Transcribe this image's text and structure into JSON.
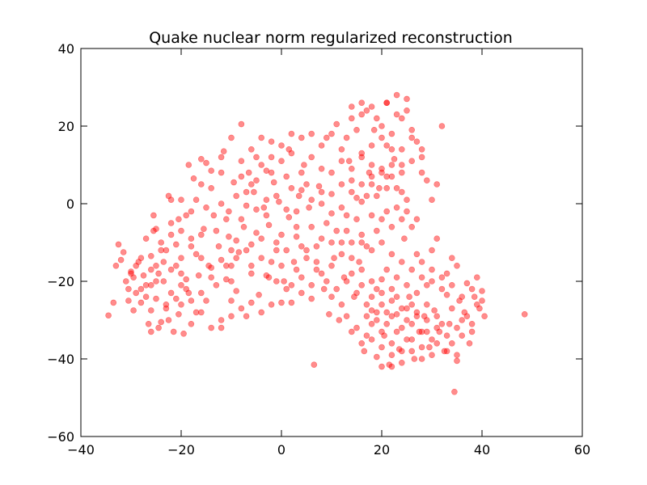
{
  "chart_data": {
    "type": "scatter",
    "title": "Quake nuclear norm regularized reconstruction",
    "xlabel": "",
    "ylabel": "",
    "xlim": [
      -40,
      60
    ],
    "ylim": [
      -60,
      40
    ],
    "x_ticks": [
      -40,
      -20,
      0,
      20,
      40,
      60
    ],
    "y_ticks": [
      -60,
      -40,
      -20,
      0,
      20,
      40
    ],
    "x_tick_labels": [
      "−40",
      "−20",
      "0",
      "20",
      "40",
      "60"
    ],
    "y_tick_labels": [
      "−60",
      "−40",
      "−20",
      "0",
      "20",
      "40"
    ],
    "grid": false,
    "legend": "none",
    "marker_color": "#ff0000",
    "marker_alpha": 0.45,
    "points": [
      [
        -34.5,
        -28.8
      ],
      [
        -33.5,
        -25.5
      ],
      [
        -33,
        -16
      ],
      [
        -32.5,
        -10.5
      ],
      [
        -32,
        -14.5
      ],
      [
        -31.5,
        -12.5
      ],
      [
        -31,
        -20
      ],
      [
        -30.5,
        -25
      ],
      [
        -30.5,
        -22
      ],
      [
        -30,
        -17.5
      ],
      [
        -29.5,
        -27.5
      ],
      [
        -29.5,
        -19
      ],
      [
        -29,
        -16
      ],
      [
        -28.5,
        -15
      ],
      [
        -28,
        -25.5
      ],
      [
        -27.5,
        -18.5
      ],
      [
        -27,
        -21
      ],
      [
        -26.5,
        -31
      ],
      [
        -26,
        -27.5
      ],
      [
        -26,
        -13.5
      ],
      [
        -25.5,
        -3
      ],
      [
        -25.5,
        -7
      ],
      [
        -25,
        -6.5
      ],
      [
        -25,
        -24.5
      ],
      [
        -24.5,
        -18
      ],
      [
        -24.5,
        -32
      ],
      [
        -24,
        -10
      ],
      [
        -23.5,
        -15
      ],
      [
        -23.5,
        -20
      ],
      [
        -23,
        -27
      ],
      [
        -22.5,
        -30
      ],
      [
        -22.5,
        2
      ],
      [
        -22,
        -23
      ],
      [
        -22,
        1
      ],
      [
        -21.5,
        -33
      ],
      [
        -21,
        -10.5
      ],
      [
        -21,
        -16
      ],
      [
        -20.5,
        -4
      ],
      [
        -20.5,
        -28.5
      ],
      [
        -20,
        -21
      ],
      [
        -20,
        -14
      ],
      [
        -19.5,
        -33.5
      ],
      [
        -19,
        -19.5
      ],
      [
        -19,
        -3
      ],
      [
        -18.5,
        10
      ],
      [
        -18.5,
        -23
      ],
      [
        -18,
        -11
      ],
      [
        -17.5,
        6.5
      ],
      [
        -17,
        1
      ],
      [
        -17,
        -28
      ],
      [
        -16.5,
        -18.5
      ],
      [
        -16,
        11.5
      ],
      [
        -15.5,
        -6.5
      ],
      [
        -15,
        10.5
      ],
      [
        -15,
        -25
      ],
      [
        -14.5,
        -16
      ],
      [
        -14,
        8.5
      ],
      [
        -13.5,
        -3
      ],
      [
        -13,
        -21
      ],
      [
        -12.5,
        -11
      ],
      [
        -12,
        -32
      ],
      [
        -11.5,
        13.5
      ],
      [
        -11,
        -19.5
      ],
      [
        -10.5,
        -8.5
      ],
      [
        -10.5,
        -2
      ],
      [
        -10,
        -16
      ],
      [
        -9.5,
        5.5
      ],
      [
        -9,
        -22.5
      ],
      [
        -9,
        2
      ],
      [
        -8.5,
        -12.5
      ],
      [
        -8,
        20.5
      ],
      [
        -7.5,
        -6
      ],
      [
        -7,
        -29
      ],
      [
        -7,
        -0.5
      ],
      [
        -6.5,
        8
      ],
      [
        -6,
        -18
      ],
      [
        -6,
        -10.5
      ],
      [
        -5.5,
        3
      ],
      [
        -5,
        -7.5
      ],
      [
        -5,
        12
      ],
      [
        -4.5,
        -23.5
      ],
      [
        -4,
        -14
      ],
      [
        -3.5,
        -1
      ],
      [
        -3,
        8.5
      ],
      [
        -2.5,
        -19
      ],
      [
        -2.5,
        -5.5
      ],
      [
        -2,
        16
      ],
      [
        -1.5,
        5.5
      ],
      [
        -1,
        -12
      ],
      [
        -0.5,
        0.5
      ],
      [
        0,
        -25.5
      ],
      [
        0,
        -8
      ],
      [
        0.5,
        -20
      ],
      [
        1,
        7
      ],
      [
        1.5,
        14
      ],
      [
        1.5,
        -3.5
      ],
      [
        2,
        -25.5
      ],
      [
        2.5,
        -15
      ],
      [
        3,
        -8.5
      ],
      [
        3.5,
        2
      ],
      [
        4,
        -19
      ],
      [
        4.5,
        10
      ],
      [
        5,
        -12
      ],
      [
        5.5,
        -1
      ],
      [
        6,
        -24.5
      ],
      [
        6.5,
        -41.5
      ],
      [
        7,
        -17
      ],
      [
        7.5,
        4.5
      ],
      [
        8,
        -9
      ],
      [
        8.5,
        -22
      ],
      [
        9,
        17
      ],
      [
        9.5,
        -28.5
      ],
      [
        10,
        -2.5
      ],
      [
        10.5,
        -14
      ],
      [
        11,
        20.5
      ],
      [
        11.5,
        -30
      ],
      [
        12,
        5
      ],
      [
        12.5,
        -19
      ],
      [
        13,
        -7
      ],
      [
        13.5,
        11
      ],
      [
        14,
        -33
      ],
      [
        14.5,
        -24
      ],
      [
        15,
        1.5
      ],
      [
        15.5,
        -15
      ],
      [
        16,
        26
      ],
      [
        16.5,
        -38
      ],
      [
        17,
        -11
      ],
      [
        17.5,
        8
      ],
      [
        18,
        -27.5
      ],
      [
        18.5,
        19
      ],
      [
        19,
        -39.5
      ],
      [
        19.5,
        4
      ],
      [
        20,
        -19.5
      ],
      [
        20.5,
        -34
      ],
      [
        21,
        -2
      ],
      [
        21,
        26
      ],
      [
        21.5,
        -41.5
      ],
      [
        22,
        -22
      ],
      [
        22.5,
        11.5
      ],
      [
        23,
        -28.5
      ],
      [
        23.5,
        -37.5
      ],
      [
        24,
        22
      ],
      [
        24.5,
        -9
      ],
      [
        25,
        -30
      ],
      [
        25.5,
        -24
      ],
      [
        26,
        17
      ],
      [
        26.5,
        -40
      ],
      [
        27,
        -13
      ],
      [
        27.5,
        -33
      ],
      [
        28,
        8
      ],
      [
        28.5,
        -29
      ],
      [
        29,
        -21
      ],
      [
        29.5,
        -37
      ],
      [
        30,
        -12
      ],
      [
        30.5,
        -27.5
      ],
      [
        31,
        5
      ],
      [
        31.5,
        -33
      ],
      [
        32,
        20
      ],
      [
        32.5,
        -38
      ],
      [
        33,
        -23.5
      ],
      [
        33.5,
        -31
      ],
      [
        34,
        -14
      ],
      [
        34.5,
        -48.5
      ],
      [
        35,
        -40.5
      ],
      [
        35.5,
        -25
      ],
      [
        36,
        -34
      ],
      [
        36.5,
        -28
      ],
      [
        37,
        -20.5
      ],
      [
        37.5,
        -36
      ],
      [
        38,
        -31
      ],
      [
        38.5,
        -24
      ],
      [
        39,
        -19
      ],
      [
        39.5,
        -27
      ],
      [
        40,
        -22.5
      ],
      [
        40.5,
        -29
      ],
      [
        48.5,
        -28.5
      ],
      [
        -26,
        -33
      ],
      [
        -24,
        -30.5
      ],
      [
        -23,
        -26
      ],
      [
        -21,
        -24.5
      ],
      [
        -19,
        -22
      ],
      [
        -16,
        -23
      ],
      [
        -14,
        -16.5
      ],
      [
        -12,
        -14.5
      ],
      [
        -10,
        -12
      ],
      [
        -11,
        -4
      ],
      [
        -9,
        -9.5
      ],
      [
        -7,
        -12
      ],
      [
        -5,
        -1.5
      ],
      [
        -3,
        -3
      ],
      [
        -1,
        2
      ],
      [
        1,
        -1.5
      ],
      [
        3,
        -2
      ],
      [
        4,
        3.5
      ],
      [
        6,
        1
      ],
      [
        8,
        0
      ],
      [
        10,
        2.5
      ],
      [
        12,
        -1
      ],
      [
        14,
        3
      ],
      [
        16,
        0.5
      ],
      [
        18,
        -3
      ],
      [
        19,
        2
      ],
      [
        21,
        4
      ],
      [
        23,
        -1
      ],
      [
        24,
        3
      ],
      [
        25,
        1
      ],
      [
        -12,
        8
      ],
      [
        -14,
        4
      ],
      [
        -16,
        5
      ],
      [
        -18,
        -2
      ],
      [
        -20,
        1
      ],
      [
        -22,
        -5
      ],
      [
        -8,
        11
      ],
      [
        -6,
        14
      ],
      [
        -4,
        10
      ],
      [
        -2,
        12
      ],
      [
        0,
        11
      ],
      [
        2,
        13
      ],
      [
        4,
        8
      ],
      [
        6,
        12
      ],
      [
        8,
        9
      ],
      [
        10,
        8
      ],
      [
        12,
        11
      ],
      [
        14,
        9
      ],
      [
        16,
        12
      ],
      [
        18,
        10
      ],
      [
        20,
        9
      ],
      [
        22,
        7
      ],
      [
        -10,
        -25
      ],
      [
        -8,
        -27
      ],
      [
        -6,
        -25.5
      ],
      [
        -4,
        -28
      ],
      [
        -2,
        -26
      ],
      [
        2,
        -21
      ],
      [
        4,
        -23
      ],
      [
        6,
        -21
      ],
      [
        8,
        -18
      ],
      [
        10,
        -16
      ],
      [
        12,
        -13
      ],
      [
        14,
        -10
      ],
      [
        16,
        -8
      ],
      [
        18,
        -12
      ],
      [
        20,
        -10
      ],
      [
        22,
        -13
      ],
      [
        24,
        -15
      ],
      [
        26,
        -17
      ],
      [
        28,
        -19
      ],
      [
        30,
        -20
      ],
      [
        32,
        -22
      ],
      [
        34,
        -27
      ],
      [
        36,
        -30
      ],
      [
        38,
        -33
      ],
      [
        14,
        -18
      ],
      [
        16,
        -21
      ],
      [
        18,
        -24
      ],
      [
        20,
        -26
      ],
      [
        22,
        -29
      ],
      [
        24,
        -32
      ],
      [
        26,
        -35
      ],
      [
        28,
        -37
      ],
      [
        30,
        -39
      ],
      [
        18,
        -31
      ],
      [
        20,
        -33
      ],
      [
        22,
        -36
      ],
      [
        24,
        -38
      ],
      [
        26,
        -31
      ],
      [
        28,
        -33
      ],
      [
        30,
        -35
      ],
      [
        32,
        -31
      ],
      [
        34,
        -36
      ],
      [
        12,
        -26
      ],
      [
        10,
        -24
      ],
      [
        13,
        -29
      ],
      [
        15,
        -32
      ],
      [
        17,
        -29
      ],
      [
        19,
        -22
      ],
      [
        21,
        -17
      ],
      [
        23,
        -19
      ],
      [
        25,
        -21
      ],
      [
        27,
        -23
      ],
      [
        29,
        -26
      ],
      [
        31,
        -29
      ],
      [
        33,
        -18
      ],
      [
        35,
        -16
      ],
      [
        -28,
        -22
      ],
      [
        -27,
        -9
      ],
      [
        -26,
        -17
      ],
      [
        -25,
        -20
      ],
      [
        -23,
        -12
      ],
      [
        -22,
        -17
      ],
      [
        -20,
        -7
      ],
      [
        -18,
        -25
      ],
      [
        -17,
        -13
      ],
      [
        -16,
        -8
      ],
      [
        -15,
        -1
      ],
      [
        -13,
        -7
      ],
      [
        -12,
        0
      ],
      [
        -11,
        -16
      ],
      [
        -10,
        -20
      ],
      [
        -9,
        -14
      ],
      [
        -8,
        -4
      ],
      [
        -7,
        3
      ],
      [
        -6,
        -16
      ],
      [
        -5,
        6
      ],
      [
        -4,
        -9
      ],
      [
        -3,
        1
      ],
      [
        -2,
        -15
      ],
      [
        -1,
        -10
      ],
      [
        0,
        -16
      ],
      [
        1,
        -12
      ],
      [
        2,
        4
      ],
      [
        3,
        -6
      ],
      [
        4,
        -11
      ],
      [
        5,
        5
      ],
      [
        6,
        -6
      ],
      [
        7,
        -11
      ],
      [
        8,
        3
      ],
      [
        9,
        -5
      ],
      [
        10,
        -10
      ],
      [
        11,
        -7
      ],
      [
        12,
        -10
      ],
      [
        13,
        -3
      ],
      [
        14,
        6
      ],
      [
        15,
        -4
      ],
      [
        16,
        -10
      ],
      [
        17,
        2
      ],
      [
        18,
        5
      ],
      [
        19,
        -7
      ],
      [
        20,
        -4
      ],
      [
        21,
        7
      ],
      [
        22,
        -6
      ],
      [
        23,
        4
      ],
      [
        24,
        -4
      ],
      [
        25,
        -2
      ],
      [
        26,
        -6
      ],
      [
        27,
        -4
      ],
      [
        12,
        14
      ],
      [
        13,
        17
      ],
      [
        14,
        22
      ],
      [
        15,
        19
      ],
      [
        16,
        23
      ],
      [
        17,
        24
      ],
      [
        18,
        25
      ],
      [
        19,
        22
      ],
      [
        20,
        20
      ],
      [
        21,
        15
      ],
      [
        22,
        18
      ],
      [
        23,
        23
      ],
      [
        24,
        14
      ],
      [
        25,
        24
      ],
      [
        26,
        19
      ],
      [
        27,
        16
      ],
      [
        28,
        12
      ],
      [
        29,
        6
      ],
      [
        30,
        1
      ],
      [
        31,
        -9
      ],
      [
        14,
        25
      ],
      [
        16,
        13
      ],
      [
        18,
        15
      ],
      [
        20,
        17
      ],
      [
        22,
        14
      ],
      [
        24,
        10
      ],
      [
        26,
        11
      ],
      [
        28,
        14
      ],
      [
        10,
        18
      ],
      [
        8,
        15
      ],
      [
        6,
        18
      ],
      [
        4,
        17
      ],
      [
        2,
        18
      ],
      [
        0,
        15
      ],
      [
        -2,
        8
      ],
      [
        -4,
        17
      ],
      [
        -6,
        5
      ],
      [
        -8,
        7
      ],
      [
        -10,
        17
      ],
      [
        -12,
        12
      ],
      [
        -20,
        -26
      ],
      [
        -18,
        -31
      ],
      [
        -16,
        -28
      ],
      [
        -14,
        -32
      ],
      [
        -12,
        -30
      ],
      [
        -10,
        -29
      ],
      [
        -24,
        -12
      ],
      [
        -22,
        -8
      ],
      [
        -20,
        -18
      ],
      [
        -18,
        -9
      ],
      [
        -16,
        -14
      ],
      [
        -14,
        -19
      ],
      [
        -26,
        -21
      ],
      [
        -28,
        -14
      ],
      [
        -30,
        -18
      ],
      [
        -29,
        -23
      ],
      [
        -27,
        -24
      ],
      [
        -25,
        -16
      ],
      [
        16,
        -36
      ],
      [
        18,
        -35
      ],
      [
        20,
        -37
      ],
      [
        22,
        -39
      ],
      [
        24,
        -41
      ],
      [
        26,
        -38
      ],
      [
        28,
        -40
      ],
      [
        20,
        -42
      ],
      [
        22,
        -42
      ],
      [
        17,
        -34
      ],
      [
        19,
        -30
      ],
      [
        21,
        -31
      ],
      [
        23,
        -33
      ],
      [
        25,
        -35
      ],
      [
        27,
        -28
      ],
      [
        29,
        -30
      ],
      [
        31,
        -32
      ],
      [
        33,
        -34
      ],
      [
        35,
        -32
      ],
      [
        37,
        -29
      ],
      [
        39,
        -26
      ],
      [
        28,
        -15
      ],
      [
        30,
        -17
      ],
      [
        32,
        -19
      ],
      [
        34,
        -21
      ],
      [
        36,
        -24
      ],
      [
        38,
        -22
      ],
      [
        40,
        -25
      ],
      [
        26,
        -26
      ],
      [
        24,
        -27
      ],
      [
        22,
        -25
      ],
      [
        20,
        -23
      ],
      [
        18,
        -20
      ],
      [
        16,
        -17
      ],
      [
        14,
        -14
      ],
      [
        21,
        26
      ],
      [
        23,
        28
      ],
      [
        25,
        27
      ],
      [
        20,
        8
      ],
      [
        18,
        7
      ],
      [
        16,
        5
      ],
      [
        22,
        10
      ],
      [
        24,
        8
      ],
      [
        -3,
        -18.5
      ],
      [
        -1,
        -20
      ],
      [
        1,
        -22
      ],
      [
        3,
        -17
      ],
      [
        5,
        -14
      ],
      [
        7,
        -15
      ],
      [
        9,
        -20
      ],
      [
        11,
        -22
      ],
      [
        13,
        -20
      ],
      [
        15,
        -23
      ],
      [
        17,
        -26
      ],
      [
        19,
        -28
      ],
      [
        21,
        -28
      ],
      [
        23,
        -24
      ],
      [
        25,
        -27
      ],
      [
        27,
        -29
      ],
      [
        29,
        -33
      ],
      [
        31,
        -36
      ],
      [
        33,
        -38
      ],
      [
        35,
        -39
      ]
    ]
  }
}
